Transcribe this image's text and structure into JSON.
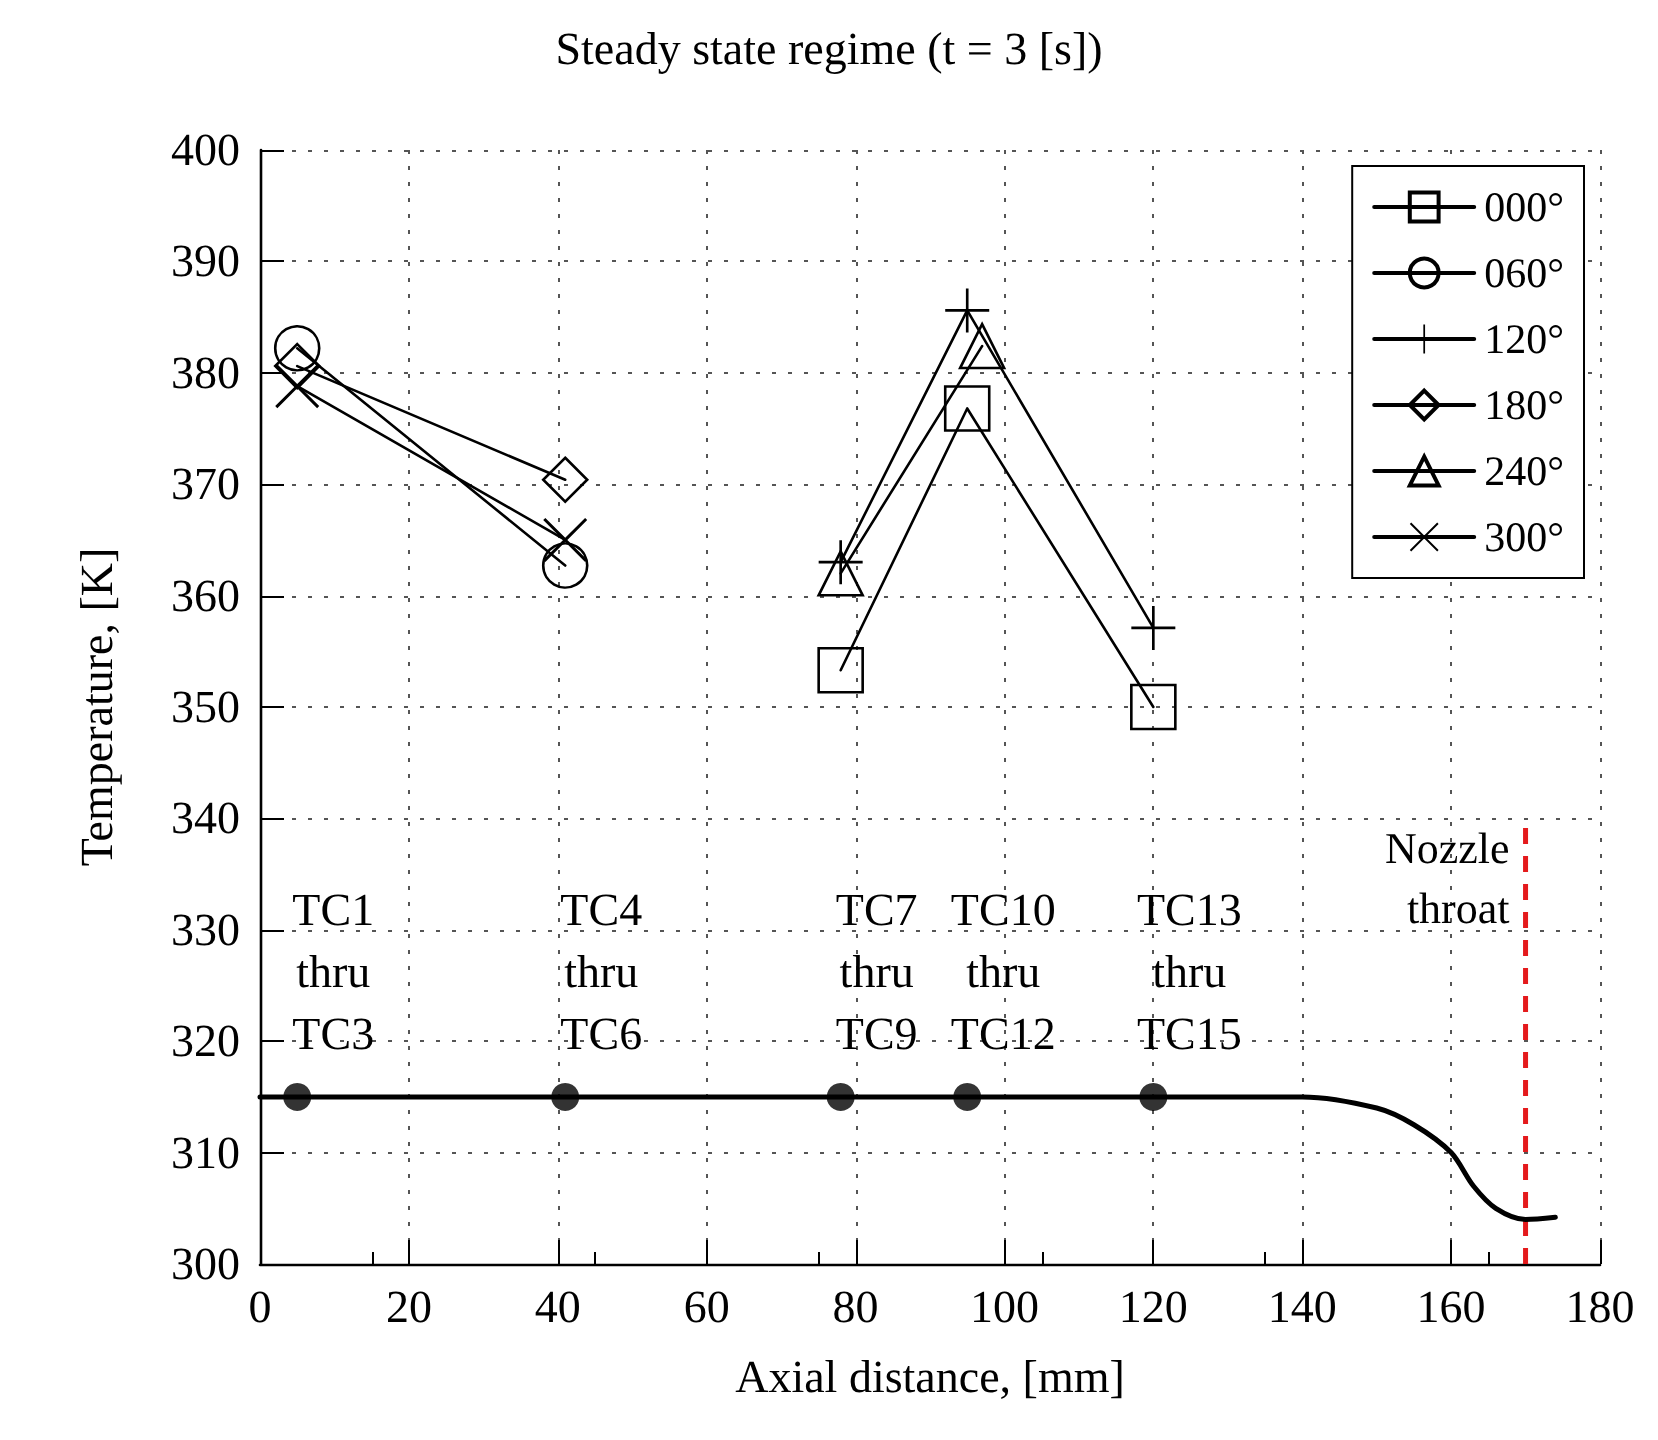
{
  "chart_data": {
    "type": "line",
    "title": "Steady state regime (t = 3 [s])",
    "xlabel": "Axial distance, [mm]",
    "ylabel": "Temperature, [K]",
    "xlim": [
      0,
      180
    ],
    "xticks": [
      0,
      20,
      40,
      60,
      80,
      100,
      120,
      140,
      160,
      180
    ],
    "ylim": [
      300,
      400
    ],
    "yticks": [
      300,
      310,
      320,
      330,
      340,
      350,
      360,
      370,
      380,
      390,
      400
    ],
    "grid": true,
    "legend": "top right",
    "series": [
      {
        "name": "000°",
        "color": "#000000",
        "marker": "square",
        "x": [
          78,
          95,
          120
        ],
        "values": [
          353.3,
          376.8,
          350
        ]
      },
      {
        "name": "060°",
        "color": "#000000",
        "marker": "circle",
        "x": [
          5,
          41
        ],
        "values": [
          382.2,
          362.7
        ]
      },
      {
        "name": "120°",
        "color": "#000000",
        "marker": "plus",
        "x": [
          78,
          95,
          120
        ],
        "values": [
          363,
          385.6,
          357.1
        ]
      },
      {
        "name": "180°",
        "color": "#000000",
        "marker": "diamond",
        "x": [
          5,
          41
        ],
        "values": [
          380.6,
          370.4
        ]
      },
      {
        "name": "240°",
        "color": "#000000",
        "marker": "triangle",
        "x": [
          78,
          97
        ],
        "values": [
          362,
          382.4
        ]
      },
      {
        "name": "300°",
        "color": "#000000",
        "marker": "cross",
        "x": [
          5,
          41
        ],
        "values": [
          378.8,
          365
        ]
      },
      {
        "color": "#000000",
        "marker": "none",
        "x": [
          0,
          140,
          150,
          155,
          160,
          163,
          166,
          170,
          174
        ],
        "values": [
          315,
          315,
          314,
          312.5,
          310,
          307,
          305,
          304,
          304.2
        ]
      },
      {
        "type": "scatter",
        "color": "#000000",
        "marker": "circle",
        "x": [
          5,
          41,
          78,
          95,
          120
        ],
        "values": [
          315,
          315,
          315,
          315,
          315
        ]
      }
    ],
    "ref_lines": [
      {
        "axis": "x",
        "value": 170,
        "label": "Nozzle\nthroat",
        "color": "#e41a1c",
        "line_style": "dashed"
      }
    ],
    "annotations": [
      {
        "text": "TC1\nthru\nTC3",
        "x": 5,
        "y": 315
      },
      {
        "text": "TC4\nthru\nTC6",
        "x": 41,
        "y": 315
      },
      {
        "text": "TC7\nthru\nTC9",
        "x": 78,
        "y": 315
      },
      {
        "text": "TC10\nthru\nTC12",
        "x": 95,
        "y": 315
      },
      {
        "text": "TC13\nthru\nTC15",
        "x": 120,
        "y": 315
      }
    ]
  }
}
